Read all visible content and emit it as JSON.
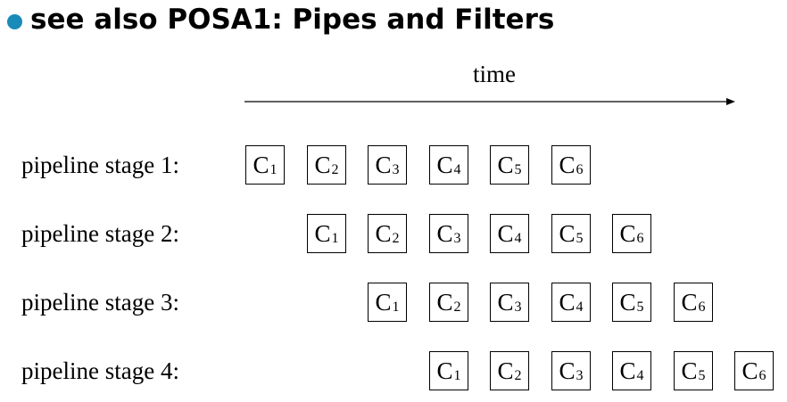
{
  "heading": {
    "text": "see also POSA1: Pipes and Filters",
    "bullet_color": "#1a8ab8"
  },
  "diagram": {
    "time_label": "time",
    "stages": [
      {
        "label": "pipeline stage 1:",
        "offset": 0,
        "cells": [
          {
            "main": "C",
            "sub": "1"
          },
          {
            "main": "C",
            "sub": "2"
          },
          {
            "main": "C",
            "sub": "3"
          },
          {
            "main": "C",
            "sub": "4"
          },
          {
            "main": "C",
            "sub": "5"
          },
          {
            "main": "C",
            "sub": "6"
          }
        ]
      },
      {
        "label": "pipeline stage 2:",
        "offset": 1,
        "cells": [
          {
            "main": "C",
            "sub": "1"
          },
          {
            "main": "C",
            "sub": "2"
          },
          {
            "main": "C",
            "sub": "3"
          },
          {
            "main": "C",
            "sub": "4"
          },
          {
            "main": "C",
            "sub": "5"
          },
          {
            "main": "C",
            "sub": "6"
          }
        ]
      },
      {
        "label": "pipeline stage 3:",
        "offset": 2,
        "cells": [
          {
            "main": "C",
            "sub": "1"
          },
          {
            "main": "C",
            "sub": "2"
          },
          {
            "main": "C",
            "sub": "3"
          },
          {
            "main": "C",
            "sub": "4"
          },
          {
            "main": "C",
            "sub": "5"
          },
          {
            "main": "C",
            "sub": "6"
          }
        ]
      },
      {
        "label": "pipeline stage 4:",
        "offset": 3,
        "cells": [
          {
            "main": "C",
            "sub": "1"
          },
          {
            "main": "C",
            "sub": "2"
          },
          {
            "main": "C",
            "sub": "3"
          },
          {
            "main": "C",
            "sub": "4"
          },
          {
            "main": "C",
            "sub": "5"
          },
          {
            "main": "C",
            "sub": "6"
          }
        ]
      }
    ]
  }
}
